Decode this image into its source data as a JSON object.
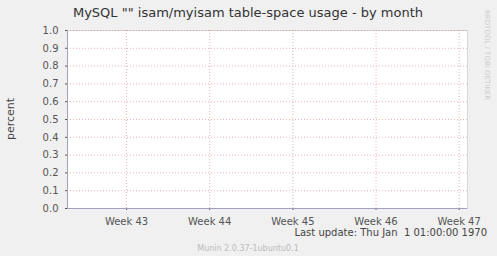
{
  "chart_data": {
    "type": "line",
    "title": "MySQL \"\" isam/myisam table-space usage - by month",
    "y_label": "percent",
    "x": [],
    "series": [],
    "xlim": [
      42.29,
      47.1
    ],
    "xticks": [
      {
        "value": 43,
        "label": "Week 43"
      },
      {
        "value": 44,
        "label": "Week 44"
      },
      {
        "value": 45,
        "label": "Week 45"
      },
      {
        "value": 46,
        "label": "Week 46"
      },
      {
        "value": 47,
        "label": "Week 47"
      }
    ],
    "ylim": [
      0,
      1
    ],
    "yticks": [
      {
        "value": 0,
        "label": "0.0"
      },
      0.1,
      0.2,
      0.3,
      0.4,
      0.5,
      0.6,
      0.7,
      0.8,
      0.9,
      {
        "value": 1,
        "label": "1.0"
      }
    ],
    "grid": true,
    "annotations": [
      "Last update: Thu Jan  1 01:00:00 1970",
      "Munin 2.0.37-1ubuntu0.1",
      "RRDTOOL / TOBI OETIKER"
    ]
  }
}
